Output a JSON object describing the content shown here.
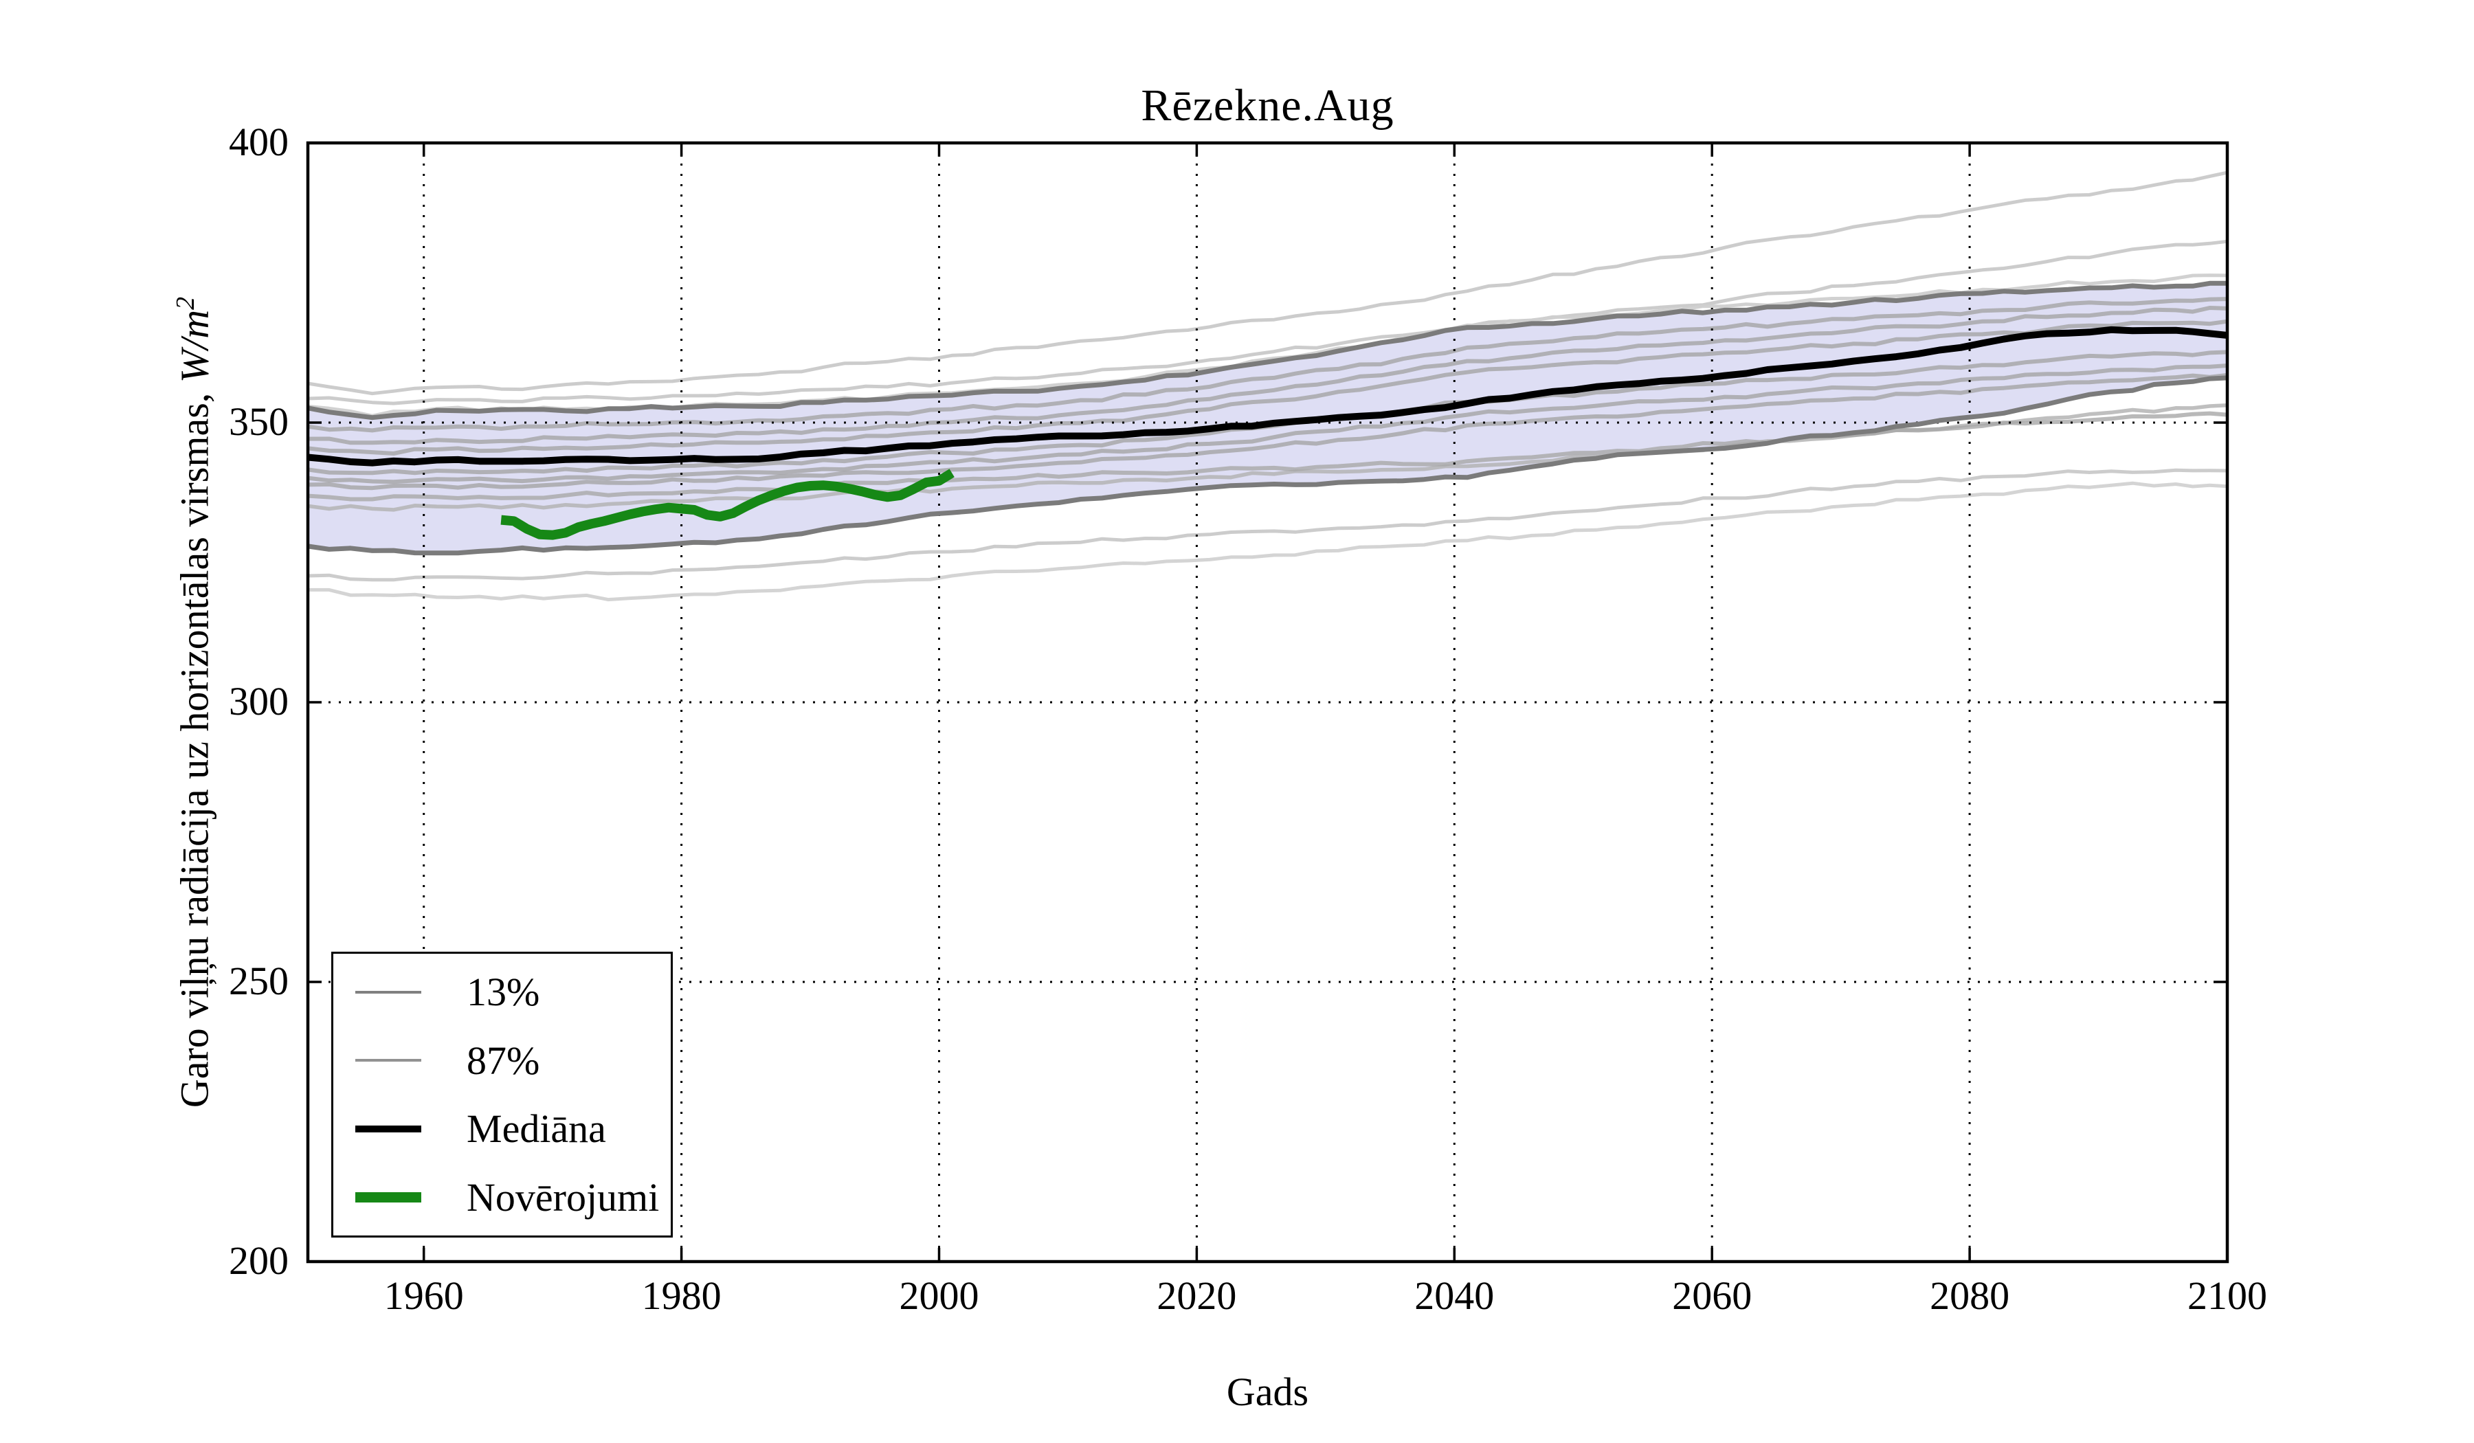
{
  "page": {
    "background": "#ffffff"
  },
  "chart_data": {
    "type": "line",
    "title": "Rēzekne.Aug",
    "xlabel": "Gads",
    "ylabel_full": "Garo viļņu radiācija uz horizontālas virsmas, W/m²",
    "ylabel_text": "Garo viļņu radiācija uz horizontālas virsmas, ",
    "ylabel_unit_base": "W/m",
    "ylabel_unit_exp": "2",
    "xlim": [
      1951,
      2100
    ],
    "ylim": [
      200,
      400
    ],
    "xticks": [
      "1960",
      "1980",
      "2000",
      "2020",
      "2040",
      "2060",
      "2080",
      "2100"
    ],
    "yticks": [
      "200",
      "250",
      "300",
      "350",
      "400"
    ],
    "grid": {
      "style": "dotted",
      "color": "#000000",
      "on": true
    },
    "band": {
      "fill": "#dedef4",
      "upper_name": "87%",
      "lower_name": "13%"
    },
    "years": [
      1951,
      1956,
      1961,
      1966,
      1971,
      1976,
      1981,
      1986,
      1991,
      1996,
      2001,
      2006,
      2011,
      2016,
      2021,
      2026,
      2031,
      2036,
      2041,
      2046,
      2051,
      2056,
      2061,
      2066,
      2071,
      2076,
      2081,
      2086,
      2091,
      2096,
      2100
    ],
    "series": [
      {
        "name": "run-1",
        "role": "ensemble",
        "color": "#c9c9c9",
        "width": 5,
        "opacity": 0.95,
        "values": [
          357.0,
          355.2,
          356.3,
          356.0,
          356.8,
          357.3,
          357.9,
          358.6,
          359.9,
          360.9,
          362.0,
          363.4,
          364.6,
          365.8,
          367.1,
          368.4,
          369.8,
          371.5,
          373.5,
          375.5,
          377.5,
          379.5,
          381.3,
          383.2,
          385.0,
          386.8,
          388.4,
          390.0,
          391.5,
          393.2,
          394.7
        ]
      },
      {
        "name": "run-2",
        "role": "ensemble",
        "color": "#c9c9c9",
        "width": 5,
        "opacity": 0.95,
        "values": [
          354.3,
          353.6,
          354.1,
          353.8,
          354.4,
          354.2,
          354.8,
          355.1,
          355.9,
          356.4,
          357.1,
          357.9,
          358.8,
          359.9,
          361.2,
          362.7,
          364.1,
          365.6,
          367.2,
          368.3,
          369.5,
          370.6,
          371.8,
          373.2,
          374.5,
          375.9,
          377.3,
          378.8,
          380.3,
          381.8,
          382.4
        ]
      },
      {
        "name": "run-3",
        "role": "ensemble",
        "color": "#cfcfcf",
        "width": 5,
        "opacity": 0.95,
        "values": [
          352.9,
          351.2,
          352.5,
          352.6,
          352.4,
          352.8,
          353.1,
          353.3,
          354.0,
          354.6,
          355.3,
          356.1,
          357.0,
          358.2,
          359.7,
          361.5,
          363.3,
          365.2,
          367.4,
          368.2,
          369.2,
          370.0,
          370.8,
          371.4,
          372.2,
          372.9,
          373.8,
          374.5,
          375.2,
          375.8,
          376.3
        ]
      },
      {
        "name": "run-4",
        "role": "ensemble",
        "color": "#c9c9c9",
        "width": 5,
        "opacity": 0.95,
        "values": [
          322.6,
          321.9,
          322.4,
          322.2,
          322.7,
          323.1,
          323.7,
          324.3,
          325.2,
          326.0,
          326.9,
          327.8,
          328.6,
          329.3,
          330.0,
          330.6,
          331.1,
          331.7,
          332.4,
          333.3,
          334.3,
          335.4,
          336.5,
          337.6,
          338.6,
          339.5,
          340.3,
          340.9,
          341.3,
          341.5,
          341.4
        ]
      },
      {
        "name": "run-5",
        "role": "ensemble",
        "color": "#d2d2d2",
        "width": 5,
        "opacity": 0.95,
        "values": [
          320.1,
          319.2,
          318.8,
          318.5,
          318.9,
          318.6,
          319.3,
          319.9,
          320.8,
          321.7,
          322.6,
          323.4,
          324.1,
          324.8,
          325.5,
          326.3,
          327.1,
          328.0,
          328.9,
          329.8,
          330.8,
          331.9,
          333.0,
          334.1,
          335.2,
          336.2,
          337.2,
          338.1,
          338.8,
          339.0,
          338.6
        ]
      },
      {
        "name": "run-6",
        "role": "ensemble",
        "color": "#b4b4b4",
        "width": 5.5,
        "opacity": 0.85,
        "values": [
          335.1,
          334.6,
          335.0,
          334.8,
          335.3,
          335.6,
          336.0,
          336.3,
          337.0,
          337.6,
          338.2,
          338.7,
          339.2,
          339.8,
          340.3,
          340.8,
          341.2,
          341.6,
          342.2,
          343.0,
          343.9,
          344.8,
          345.7,
          346.7,
          347.7,
          348.7,
          349.8,
          350.8,
          351.8,
          352.6,
          353.1
        ]
      },
      {
        "name": "run-7",
        "role": "ensemble",
        "color": "#a8a8a8",
        "width": 6,
        "opacity": 0.8,
        "values": [
          336.9,
          336.3,
          336.7,
          336.5,
          337.0,
          337.3,
          337.7,
          338.1,
          338.7,
          339.2,
          339.7,
          340.1,
          340.6,
          341.0,
          341.5,
          341.9,
          342.2,
          342.6,
          343.1,
          343.8,
          344.6,
          345.4,
          346.2,
          347.0,
          347.8,
          348.6,
          349.4,
          350.1,
          350.7,
          351.2,
          351.4
        ]
      },
      {
        "name": "run-8",
        "role": "ensemble",
        "color": "#a0a0a0",
        "width": 6,
        "opacity": 0.75,
        "values": [
          349.3,
          348.6,
          349.1,
          348.9,
          349.4,
          349.7,
          350.1,
          350.4,
          351.1,
          351.7,
          352.4,
          353.1,
          354.0,
          355.0,
          356.4,
          358.0,
          359.6,
          361.4,
          363.4,
          364.3,
          365.3,
          366.2,
          367.0,
          367.7,
          368.5,
          369.2,
          370.0,
          370.7,
          371.3,
          371.8,
          372.1
        ]
      },
      {
        "name": "run-9",
        "role": "ensemble",
        "color": "#a0a0a0",
        "width": 6,
        "opacity": 0.75,
        "values": [
          347.1,
          346.4,
          346.9,
          346.7,
          347.2,
          347.4,
          347.8,
          348.1,
          348.8,
          349.4,
          350.1,
          350.8,
          351.7,
          352.8,
          354.2,
          355.8,
          357.4,
          359.1,
          361.0,
          361.9,
          362.9,
          363.8,
          364.7,
          365.5,
          366.4,
          367.2,
          368.1,
          368.9,
          369.6,
          370.1,
          370.4
        ]
      },
      {
        "name": "run-10",
        "role": "ensemble",
        "color": "#a0a0a0",
        "width": 6,
        "opacity": 0.75,
        "values": [
          345.4,
          344.7,
          345.2,
          345.0,
          345.5,
          345.7,
          346.1,
          346.4,
          347.0,
          347.6,
          348.3,
          349.0,
          349.9,
          351.0,
          352.4,
          353.9,
          355.5,
          357.2,
          359.0,
          359.9,
          360.8,
          361.7,
          362.5,
          363.3,
          364.1,
          364.9,
          365.8,
          366.6,
          367.3,
          367.8,
          368.1
        ]
      },
      {
        "name": "run-11",
        "role": "ensemble",
        "color": "#a0a0a0",
        "width": 6,
        "opacity": 0.75,
        "values": [
          341.6,
          341.0,
          341.4,
          341.2,
          341.7,
          341.9,
          342.3,
          342.6,
          343.3,
          343.9,
          344.6,
          345.2,
          346.0,
          346.9,
          348.1,
          349.4,
          350.7,
          352.1,
          353.7,
          354.5,
          355.4,
          356.2,
          357.0,
          357.8,
          358.6,
          359.4,
          360.3,
          361.1,
          361.8,
          362.3,
          362.6
        ]
      },
      {
        "name": "run-12",
        "role": "ensemble",
        "color": "#a0a0a0",
        "width": 6,
        "opacity": 0.75,
        "values": [
          340.1,
          339.5,
          339.9,
          339.7,
          340.2,
          340.4,
          340.8,
          341.1,
          341.7,
          342.3,
          342.9,
          343.5,
          344.3,
          345.1,
          346.2,
          347.4,
          348.6,
          349.9,
          351.4,
          352.2,
          353.0,
          353.8,
          354.6,
          355.4,
          356.2,
          357.0,
          357.9,
          358.7,
          359.4,
          359.9,
          360.2
        ]
      },
      {
        "name": "run-13",
        "role": "ensemble",
        "color": "#a0a0a0",
        "width": 6,
        "opacity": 0.75,
        "values": [
          338.9,
          338.3,
          338.7,
          338.5,
          339.0,
          339.2,
          339.6,
          339.9,
          340.5,
          341.0,
          341.6,
          342.2,
          342.9,
          343.7,
          344.7,
          345.8,
          346.9,
          348.1,
          349.5,
          350.3,
          351.1,
          351.9,
          352.7,
          353.5,
          354.3,
          355.1,
          356.0,
          356.8,
          357.5,
          358.1,
          358.5
        ]
      },
      {
        "name": "87%",
        "role": "quantile-upper",
        "color": "#7b7b7b",
        "width": 7,
        "opacity": 1,
        "values": [
          352.6,
          350.9,
          352.2,
          352.3,
          352.1,
          352.5,
          352.8,
          352.9,
          353.6,
          354.2,
          354.9,
          355.6,
          356.5,
          357.6,
          359.2,
          361.0,
          362.8,
          364.8,
          367.0,
          367.7,
          368.6,
          369.4,
          370.1,
          370.7,
          371.5,
          372.2,
          373.1,
          373.6,
          374.1,
          374.4,
          374.9
        ]
      },
      {
        "name": "13%",
        "role": "quantile-lower",
        "color": "#7b7b7b",
        "width": 7,
        "opacity": 1,
        "values": [
          327.9,
          327.1,
          326.7,
          327.2,
          327.6,
          327.8,
          328.6,
          329.2,
          330.9,
          332.3,
          333.9,
          335.1,
          336.3,
          337.4,
          338.4,
          339.0,
          339.3,
          339.6,
          340.2,
          342.1,
          343.6,
          344.7,
          345.4,
          347.1,
          348.2,
          349.7,
          351.2,
          353.3,
          355.5,
          357.1,
          358.0
        ]
      },
      {
        "name": "Mediāna",
        "role": "median",
        "color": "#000000",
        "width": 10,
        "opacity": 1,
        "values": [
          343.8,
          342.8,
          343.3,
          343.1,
          343.4,
          343.2,
          343.6,
          343.5,
          344.6,
          345.4,
          346.3,
          347.1,
          347.6,
          348.2,
          348.9,
          349.9,
          350.9,
          351.8,
          353.4,
          355.0,
          356.4,
          357.4,
          358.4,
          359.8,
          361.0,
          362.3,
          364.2,
          365.9,
          366.6,
          366.5,
          365.6
        ]
      }
    ],
    "observations": {
      "name": "Novērojumi",
      "color": "#168816",
      "width": 14,
      "points": [
        [
          1966,
          332.6
        ],
        [
          1967,
          332.4
        ],
        [
          1968,
          331.0
        ],
        [
          1969,
          330.0
        ],
        [
          1970,
          329.9
        ],
        [
          1971,
          330.3
        ],
        [
          1972,
          331.3
        ],
        [
          1973,
          331.9
        ],
        [
          1974,
          332.4
        ],
        [
          1975,
          333.0
        ],
        [
          1976,
          333.6
        ],
        [
          1977,
          334.1
        ],
        [
          1978,
          334.5
        ],
        [
          1979,
          334.8
        ],
        [
          1980,
          334.6
        ],
        [
          1981,
          334.4
        ],
        [
          1982,
          333.5
        ],
        [
          1983,
          333.2
        ],
        [
          1984,
          333.8
        ],
        [
          1985,
          335.0
        ],
        [
          1986,
          336.1
        ],
        [
          1987,
          337.0
        ],
        [
          1988,
          337.8
        ],
        [
          1989,
          338.4
        ],
        [
          1990,
          338.7
        ],
        [
          1991,
          338.8
        ],
        [
          1992,
          338.6
        ],
        [
          1993,
          338.2
        ],
        [
          1994,
          337.7
        ],
        [
          1995,
          337.1
        ],
        [
          1996,
          336.7
        ],
        [
          1997,
          337.0
        ],
        [
          1998,
          338.1
        ],
        [
          1999,
          339.3
        ],
        [
          2000,
          339.6
        ],
        [
          2001,
          341.0
        ]
      ]
    },
    "legend": {
      "location": "lower left",
      "items": [
        {
          "label": "13%",
          "color": "#808080",
          "line_width": 4
        },
        {
          "label": "87%",
          "color": "#929292",
          "line_width": 4
        },
        {
          "label": "Mediāna",
          "color": "#000000",
          "line_width": 10
        },
        {
          "label": "Novērojumi",
          "color": "#168816",
          "line_width": 15
        }
      ]
    }
  }
}
